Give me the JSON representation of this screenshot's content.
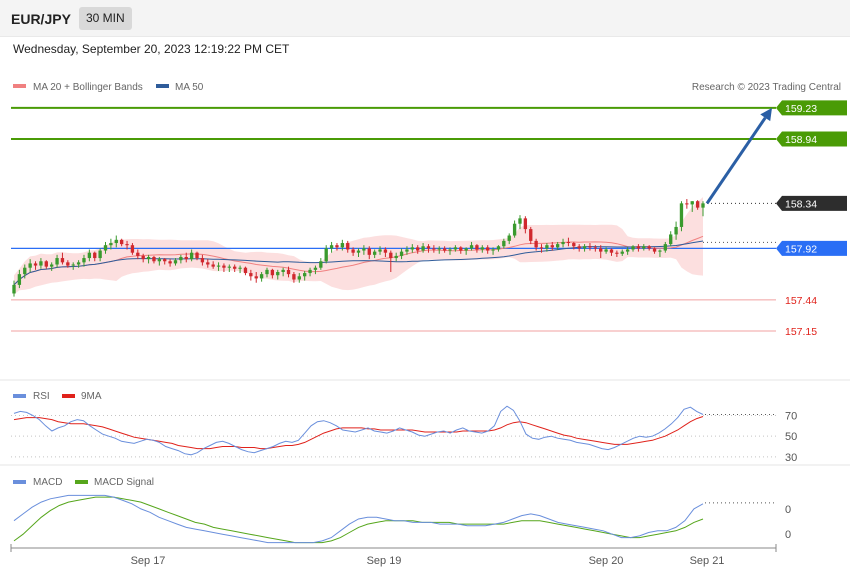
{
  "header": {
    "symbol": "EUR/JPY",
    "timeframe": "30 MIN",
    "datetime": "Wednesday, September 20, 2023 12:19:22 PM CET"
  },
  "credit": "Research © 2023 Trading Central",
  "colors": {
    "green": "#4a9b06",
    "blue_level": "#2a6ef5",
    "red_level": "#e0221b",
    "ma20": "#f08080",
    "ma50": "#2f5c9a",
    "bb_fill": "#fcdcdc",
    "up": "#3a9a2e",
    "down": "#d0282e",
    "arrow": "#2b5fa5",
    "rsi": "#6a8fdc",
    "rsi9": "#e0221b",
    "macd": "#6a8fdc",
    "signal": "#56a61c"
  },
  "chart_data": [
    {
      "type": "candlestick",
      "legend": [
        "MA 20 + Bollinger Bands",
        "MA 50"
      ],
      "levels": [
        159.23,
        158.94,
        158.34,
        157.92,
        157.44,
        157.15
      ],
      "ylim": [
        156.6,
        159.35
      ],
      "x_ticks": [
        "Sep 17",
        "Sep 19",
        "Sep 20",
        "Sep 21"
      ],
      "arrow": {
        "from": 158.34,
        "to": 159.23
      },
      "ohlc": [
        [
          157.5,
          157.62,
          157.47,
          157.58
        ],
        [
          157.58,
          157.72,
          157.55,
          157.68
        ],
        [
          157.68,
          157.77,
          157.64,
          157.74
        ],
        [
          157.74,
          157.82,
          157.7,
          157.78
        ],
        [
          157.78,
          157.8,
          157.72,
          157.76
        ],
        [
          157.76,
          157.83,
          157.73,
          157.8
        ],
        [
          157.8,
          157.81,
          157.73,
          157.75
        ],
        [
          157.75,
          157.79,
          157.71,
          157.77
        ],
        [
          157.77,
          157.86,
          157.74,
          157.83
        ],
        [
          157.83,
          157.88,
          157.77,
          157.79
        ],
        [
          157.79,
          157.81,
          157.74,
          157.76
        ],
        [
          157.76,
          157.79,
          157.72,
          157.77
        ],
        [
          157.77,
          157.81,
          157.74,
          157.79
        ],
        [
          157.79,
          157.86,
          157.75,
          157.83
        ],
        [
          157.83,
          157.91,
          157.8,
          157.88
        ],
        [
          157.88,
          157.89,
          157.8,
          157.83
        ],
        [
          157.83,
          157.92,
          157.8,
          157.9
        ],
        [
          157.9,
          157.98,
          157.87,
          157.95
        ],
        [
          157.95,
          158.01,
          157.91,
          157.97
        ],
        [
          157.97,
          158.04,
          157.93,
          158.0
        ],
        [
          158.0,
          158.01,
          157.94,
          157.96
        ],
        [
          157.96,
          157.99,
          157.91,
          157.95
        ],
        [
          157.95,
          157.97,
          157.86,
          157.88
        ],
        [
          157.88,
          157.91,
          157.82,
          157.85
        ],
        [
          157.85,
          157.87,
          157.79,
          157.82
        ],
        [
          157.82,
          157.86,
          157.78,
          157.84
        ],
        [
          157.84,
          157.85,
          157.78,
          157.8
        ],
        [
          157.8,
          157.84,
          157.76,
          157.82
        ],
        [
          157.82,
          157.83,
          157.77,
          157.8
        ],
        [
          157.8,
          157.82,
          157.75,
          157.78
        ],
        [
          157.78,
          157.83,
          157.76,
          157.81
        ],
        [
          157.81,
          157.86,
          157.78,
          157.84
        ],
        [
          157.84,
          157.88,
          157.79,
          157.82
        ],
        [
          157.82,
          157.91,
          157.8,
          157.88
        ],
        [
          157.88,
          157.89,
          157.81,
          157.83
        ],
        [
          157.83,
          157.86,
          157.76,
          157.79
        ],
        [
          157.79,
          157.82,
          157.74,
          157.77
        ],
        [
          157.77,
          157.8,
          157.73,
          157.75
        ],
        [
          157.75,
          157.79,
          157.71,
          157.76
        ],
        [
          157.76,
          157.78,
          157.7,
          157.74
        ],
        [
          157.74,
          157.77,
          157.7,
          157.75
        ],
        [
          157.75,
          157.77,
          157.7,
          157.73
        ],
        [
          157.73,
          157.76,
          157.69,
          157.74
        ],
        [
          157.74,
          157.75,
          157.67,
          157.69
        ],
        [
          157.69,
          157.72,
          157.62,
          157.66
        ],
        [
          157.66,
          157.7,
          157.6,
          157.64
        ],
        [
          157.64,
          157.7,
          157.61,
          157.68
        ],
        [
          157.68,
          157.74,
          157.65,
          157.72
        ],
        [
          157.72,
          157.73,
          157.64,
          157.67
        ],
        [
          157.67,
          157.72,
          157.63,
          157.7
        ],
        [
          157.7,
          157.74,
          157.66,
          157.72
        ],
        [
          157.72,
          157.75,
          157.65,
          157.68
        ],
        [
          157.68,
          157.7,
          157.6,
          157.63
        ],
        [
          157.63,
          157.69,
          157.6,
          157.66
        ],
        [
          157.66,
          157.71,
          157.62,
          157.69
        ],
        [
          157.69,
          157.74,
          157.66,
          157.72
        ],
        [
          157.72,
          157.76,
          157.68,
          157.74
        ],
        [
          157.74,
          157.83,
          157.72,
          157.8
        ],
        [
          157.8,
          157.95,
          157.78,
          157.92
        ],
        [
          157.92,
          157.98,
          157.88,
          157.95
        ],
        [
          157.95,
          157.97,
          157.9,
          157.93
        ],
        [
          157.93,
          158.0,
          157.9,
          157.97
        ],
        [
          157.97,
          157.99,
          157.88,
          157.91
        ],
        [
          157.91,
          157.93,
          157.85,
          157.88
        ],
        [
          157.88,
          157.92,
          157.84,
          157.9
        ],
        [
          157.9,
          157.95,
          157.86,
          157.92
        ],
        [
          157.92,
          157.94,
          157.82,
          157.86
        ],
        [
          157.86,
          157.91,
          157.83,
          157.89
        ],
        [
          157.89,
          157.94,
          157.86,
          157.91
        ],
        [
          157.91,
          157.93,
          157.84,
          157.88
        ],
        [
          157.88,
          157.9,
          157.7,
          157.83
        ],
        [
          157.83,
          157.88,
          157.8,
          157.85
        ],
        [
          157.85,
          157.92,
          157.82,
          157.89
        ],
        [
          157.89,
          157.94,
          157.86,
          157.91
        ],
        [
          157.91,
          157.96,
          157.88,
          157.93
        ],
        [
          157.93,
          157.95,
          157.87,
          157.9
        ],
        [
          157.9,
          157.97,
          157.88,
          157.94
        ],
        [
          157.94,
          157.96,
          157.88,
          157.92
        ],
        [
          157.92,
          157.95,
          157.88,
          157.91
        ],
        [
          157.91,
          157.94,
          157.87,
          157.92
        ],
        [
          157.92,
          157.94,
          157.88,
          157.9
        ],
        [
          157.9,
          157.93,
          157.86,
          157.91
        ],
        [
          157.91,
          157.95,
          157.89,
          157.93
        ],
        [
          157.93,
          157.94,
          157.87,
          157.9
        ],
        [
          157.9,
          157.93,
          157.86,
          157.92
        ],
        [
          157.92,
          157.98,
          157.9,
          157.95
        ],
        [
          157.95,
          157.96,
          157.88,
          157.91
        ],
        [
          157.91,
          157.95,
          157.88,
          157.93
        ],
        [
          157.93,
          157.95,
          157.87,
          157.9
        ],
        [
          157.9,
          157.93,
          157.86,
          157.91
        ],
        [
          157.91,
          157.95,
          157.89,
          157.94
        ],
        [
          157.94,
          158.01,
          157.92,
          157.99
        ],
        [
          157.99,
          158.06,
          157.96,
          158.04
        ],
        [
          158.04,
          158.18,
          158.02,
          158.15
        ],
        [
          158.15,
          158.23,
          158.1,
          158.2
        ],
        [
          158.2,
          158.22,
          158.06,
          158.1
        ],
        [
          158.1,
          158.12,
          157.96,
          157.99
        ],
        [
          157.99,
          158.01,
          157.9,
          157.93
        ],
        [
          157.93,
          157.96,
          157.88,
          157.92
        ],
        [
          157.92,
          157.97,
          157.89,
          157.95
        ],
        [
          157.95,
          157.98,
          157.9,
          157.93
        ],
        [
          157.93,
          157.98,
          157.91,
          157.96
        ],
        [
          157.96,
          158.01,
          157.93,
          157.98
        ],
        [
          157.98,
          158.02,
          157.94,
          157.97
        ],
        [
          157.97,
          157.98,
          157.91,
          157.94
        ],
        [
          157.94,
          157.96,
          157.89,
          157.92
        ],
        [
          157.92,
          157.96,
          157.89,
          157.94
        ],
        [
          157.94,
          157.97,
          157.9,
          157.93
        ],
        [
          157.93,
          157.95,
          157.89,
          157.92
        ],
        [
          157.92,
          157.95,
          157.83,
          157.89
        ],
        [
          157.89,
          157.93,
          157.87,
          157.91
        ],
        [
          157.91,
          157.92,
          157.85,
          157.88
        ],
        [
          157.88,
          157.9,
          157.84,
          157.87
        ],
        [
          157.87,
          157.91,
          157.85,
          157.89
        ],
        [
          157.89,
          157.93,
          157.86,
          157.91
        ],
        [
          157.91,
          157.95,
          157.89,
          157.94
        ],
        [
          157.94,
          157.96,
          157.89,
          157.92
        ],
        [
          157.92,
          157.96,
          157.9,
          157.94
        ],
        [
          157.94,
          157.95,
          157.9,
          157.92
        ],
        [
          157.92,
          157.93,
          157.87,
          157.89
        ],
        [
          157.89,
          157.91,
          157.84,
          157.9
        ],
        [
          157.9,
          157.98,
          157.88,
          157.96
        ],
        [
          157.96,
          158.08,
          157.94,
          158.05
        ],
        [
          158.05,
          158.17,
          158.0,
          158.12
        ],
        [
          158.12,
          158.36,
          158.08,
          158.34
        ],
        [
          158.34,
          158.38,
          158.29,
          158.33
        ],
        [
          158.33,
          158.36,
          158.26,
          158.36
        ],
        [
          158.36,
          158.37,
          158.28,
          158.3
        ],
        [
          158.3,
          158.36,
          158.22,
          158.34
        ]
      ]
    },
    {
      "type": "line",
      "legend": [
        "RSI",
        "9MA"
      ],
      "y_ticks": [
        70,
        50,
        30
      ],
      "ylim": [
        25,
        85
      ],
      "series": [
        {
          "name": "RSI",
          "values": [
            72,
            74,
            73,
            70,
            66,
            60,
            55,
            58,
            60,
            64,
            66,
            65,
            60,
            56,
            52,
            50,
            48,
            45,
            44,
            43,
            45,
            47,
            46,
            44,
            40,
            38,
            36,
            33,
            32,
            34,
            38,
            41,
            44,
            45,
            43,
            40,
            37,
            35,
            34,
            36,
            38,
            40,
            43,
            45,
            44,
            46,
            53,
            60,
            64,
            65,
            63,
            60,
            56,
            55,
            54,
            56,
            58,
            55,
            54,
            53,
            55,
            58,
            56,
            54,
            51,
            50,
            52,
            54,
            55,
            53,
            56,
            58,
            55,
            54,
            53,
            55,
            60,
            74,
            79,
            75,
            65,
            52,
            48,
            47,
            49,
            50,
            48,
            47,
            46,
            44,
            43,
            42,
            40,
            38,
            37,
            39,
            42,
            45,
            48,
            50,
            49,
            50,
            53,
            57,
            62,
            68,
            76,
            78,
            74,
            71
          ]
        },
        {
          "name": "9MA",
          "values": [
            66,
            67,
            68,
            68,
            68,
            67,
            66,
            64,
            63,
            62,
            62,
            62,
            61,
            60,
            59,
            57,
            55,
            53,
            51,
            49,
            48,
            47,
            46,
            45,
            44,
            43,
            41,
            40,
            39,
            38,
            38,
            38,
            39,
            40,
            40,
            40,
            39,
            39,
            39,
            38,
            38,
            39,
            40,
            41,
            41,
            42,
            44,
            47,
            50,
            53,
            55,
            57,
            58,
            58,
            58,
            58,
            57,
            57,
            56,
            56,
            56,
            56,
            56,
            56,
            55,
            54,
            54,
            54,
            54,
            54,
            54,
            55,
            55,
            55,
            55,
            55,
            56,
            58,
            61,
            63,
            64,
            63,
            61,
            59,
            57,
            55,
            53,
            51,
            50,
            48,
            47,
            46,
            45,
            44,
            43,
            42,
            42,
            42,
            43,
            44,
            45,
            46,
            48,
            50,
            53,
            56,
            60,
            64,
            67,
            69
          ]
        }
      ]
    },
    {
      "type": "line",
      "legend": [
        "MACD",
        "MACD Signal"
      ],
      "y_ticks": [
        0,
        0
      ],
      "series": [
        {
          "name": "MACD",
          "values": [
            -0.02,
            0.02,
            0.06,
            0.09,
            0.11,
            0.12,
            0.13,
            0.13,
            0.13,
            0.13,
            0.13,
            0.12,
            0.1,
            0.08,
            0.05,
            0.03,
            0.0,
            -0.02,
            -0.04,
            -0.06,
            -0.07,
            -0.08,
            -0.09,
            -0.1,
            -0.11,
            -0.12,
            -0.13,
            -0.14,
            -0.15,
            -0.15,
            -0.15,
            -0.15,
            -0.15,
            -0.15,
            -0.14,
            -0.12,
            -0.08,
            -0.04,
            -0.01,
            0.0,
            0.0,
            -0.01,
            -0.02,
            -0.02,
            -0.03,
            -0.03,
            -0.03,
            -0.04,
            -0.04,
            -0.04,
            -0.05,
            -0.05,
            -0.05,
            -0.04,
            -0.03,
            -0.01,
            0.01,
            0.02,
            0.01,
            -0.01,
            -0.03,
            -0.04,
            -0.05,
            -0.06,
            -0.07,
            -0.08,
            -0.1,
            -0.12,
            -0.12,
            -0.11,
            -0.09,
            -0.08,
            -0.08,
            -0.06,
            -0.02,
            0.05,
            0.08
          ]
        },
        {
          "name": "MACD Signal",
          "values": [
            -0.14,
            -0.1,
            -0.05,
            0.0,
            0.04,
            0.07,
            0.09,
            0.1,
            0.11,
            0.12,
            0.12,
            0.12,
            0.11,
            0.1,
            0.09,
            0.07,
            0.05,
            0.03,
            0.01,
            -0.01,
            -0.03,
            -0.04,
            -0.06,
            -0.07,
            -0.08,
            -0.09,
            -0.1,
            -0.11,
            -0.12,
            -0.13,
            -0.14,
            -0.15,
            -0.15,
            -0.15,
            -0.15,
            -0.14,
            -0.12,
            -0.09,
            -0.06,
            -0.04,
            -0.03,
            -0.02,
            -0.02,
            -0.02,
            -0.02,
            -0.03,
            -0.03,
            -0.03,
            -0.03,
            -0.04,
            -0.04,
            -0.04,
            -0.04,
            -0.04,
            -0.04,
            -0.03,
            -0.02,
            -0.02,
            -0.02,
            -0.03,
            -0.04,
            -0.05,
            -0.06,
            -0.07,
            -0.08,
            -0.09,
            -0.1,
            -0.11,
            -0.12,
            -0.12,
            -0.11,
            -0.1,
            -0.09,
            -0.08,
            -0.06,
            -0.03,
            -0.01
          ]
        }
      ]
    }
  ]
}
